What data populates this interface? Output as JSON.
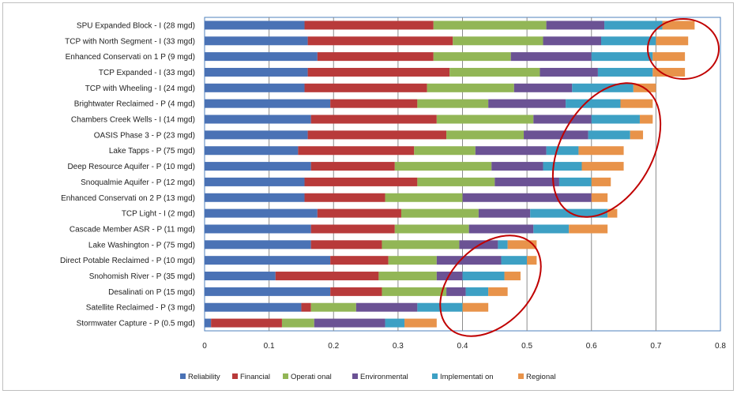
{
  "chart_data": {
    "type": "bar",
    "orientation": "horizontal",
    "stacked": true,
    "categories": [
      "SPU Expanded Block - I (28 mgd)",
      "TCP with North Segment - I (33 mgd)",
      "Enhanced Conservati on 1 P (9 mgd)",
      "TCP Expanded - I (33 mgd)",
      "TCP with Wheeling - I (24 mgd)",
      "Brightwater Reclaimed - P (4 mgd)",
      "Chambers Creek Wells - I (14 mgd)",
      "OASIS Phase 3 - P (23 mgd)",
      "Lake Tapps - P (75 mgd)",
      "Deep Resource Aquifer - P (10 mgd)",
      "Snoqualmie Aquifer - P (12 mgd)",
      "Enhanced Conservati on 2 P (13 mgd)",
      "TCP Light - I (2 mgd)",
      "Cascade Member ASR - P (11 mgd)",
      "Lake Washington - P (75 mgd)",
      "Direct Potable Reclaimed - P (10 mgd)",
      "Snohomish River - P (35 mgd)",
      "Desalinati on P (15 mgd)",
      "Satellite Reclaimed - P (3 mgd)",
      "Stormwater Capture - P (0.5 mgd)"
    ],
    "series": [
      {
        "name": "Reliability",
        "color": "#4a72b5",
        "values": [
          0.155,
          0.16,
          0.175,
          0.16,
          0.155,
          0.195,
          0.165,
          0.16,
          0.145,
          0.165,
          0.155,
          0.155,
          0.175,
          0.165,
          0.165,
          0.195,
          0.11,
          0.195,
          0.15,
          0.01
        ]
      },
      {
        "name": "Financial",
        "color": "#b83a3a",
        "values": [
          0.2,
          0.225,
          0.18,
          0.22,
          0.19,
          0.135,
          0.195,
          0.215,
          0.18,
          0.13,
          0.175,
          0.125,
          0.13,
          0.13,
          0.11,
          0.09,
          0.16,
          0.08,
          0.015,
          0.11
        ]
      },
      {
        "name": "Operati onal",
        "color": "#92b656",
        "values": [
          0.175,
          0.14,
          0.12,
          0.14,
          0.135,
          0.11,
          0.15,
          0.12,
          0.095,
          0.15,
          0.12,
          0.12,
          0.12,
          0.115,
          0.12,
          0.075,
          0.09,
          0.1,
          0.07,
          0.05
        ]
      },
      {
        "name": "Environmental",
        "color": "#6b5294",
        "values": [
          0.09,
          0.09,
          0.125,
          0.09,
          0.09,
          0.12,
          0.09,
          0.1,
          0.11,
          0.08,
          0.1,
          0.2,
          0.08,
          0.1,
          0.06,
          0.1,
          0.04,
          0.03,
          0.095,
          0.11
        ]
      },
      {
        "name": "Implementati on",
        "color": "#3da0c4",
        "values": [
          0.09,
          0.085,
          0.095,
          0.085,
          0.095,
          0.085,
          0.075,
          0.065,
          0.05,
          0.06,
          0.05,
          0.0,
          0.12,
          0.055,
          0.015,
          0.04,
          0.065,
          0.035,
          0.07,
          0.03
        ]
      },
      {
        "name": "Regional",
        "color": "#e8934a",
        "values": [
          0.05,
          0.05,
          0.05,
          0.05,
          0.035,
          0.05,
          0.02,
          0.02,
          0.07,
          0.065,
          0.03,
          0.025,
          0.015,
          0.06,
          0.045,
          0.015,
          0.025,
          0.03,
          0.04,
          0.05
        ]
      }
    ],
    "xlim": [
      0,
      0.8
    ],
    "xticks": [
      "0",
      "0.1",
      "0.2",
      "0.3",
      "0.4",
      "0.5",
      "0.6",
      "0.7",
      "0.8"
    ],
    "grid": true,
    "legend_position": "bottom",
    "annotations": [
      {
        "shape": "ellipse",
        "color": "#c00000",
        "around": "top-right bar ends"
      },
      {
        "shape": "ellipse",
        "color": "#c00000",
        "around": "upper-middle bar ends"
      },
      {
        "shape": "ellipse",
        "color": "#c00000",
        "around": "lower bar ends"
      }
    ]
  }
}
